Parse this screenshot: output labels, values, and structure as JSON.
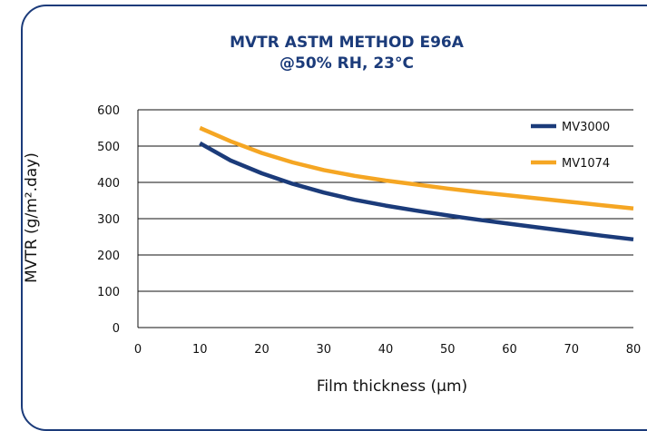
{
  "chart_data": {
    "type": "line",
    "title": "MVTR ASTM METHOD E96A",
    "subtitle": "@50% RH, 23°C",
    "xlabel": "Film thickness (μm)",
    "ylabel": "MVTR (g/m².day)",
    "xlim": [
      0,
      80
    ],
    "ylim": [
      0,
      600
    ],
    "xticks": [
      0,
      10,
      20,
      30,
      40,
      50,
      60,
      70,
      80
    ],
    "yticks": [
      0,
      100,
      200,
      300,
      400,
      500,
      600
    ],
    "grid": "horizontal",
    "legend_position": "top-right",
    "series": [
      {
        "name": "MV3000",
        "color": "#1b3b7a",
        "x": [
          10,
          15,
          20,
          25,
          30,
          35,
          40,
          45,
          50,
          55,
          60,
          65,
          70,
          75,
          80
        ],
        "y": [
          508,
          460,
          425,
          396,
          372,
          352,
          336,
          322,
          309,
          297,
          286,
          275,
          264,
          253,
          243
        ]
      },
      {
        "name": "MV1074",
        "color": "#f5a623",
        "x": [
          10,
          15,
          20,
          25,
          30,
          35,
          40,
          45,
          50,
          55,
          60,
          65,
          70,
          75,
          80
        ],
        "y": [
          550,
          513,
          481,
          455,
          434,
          418,
          405,
          394,
          383,
          373,
          364,
          355,
          346,
          337,
          328
        ]
      }
    ]
  }
}
